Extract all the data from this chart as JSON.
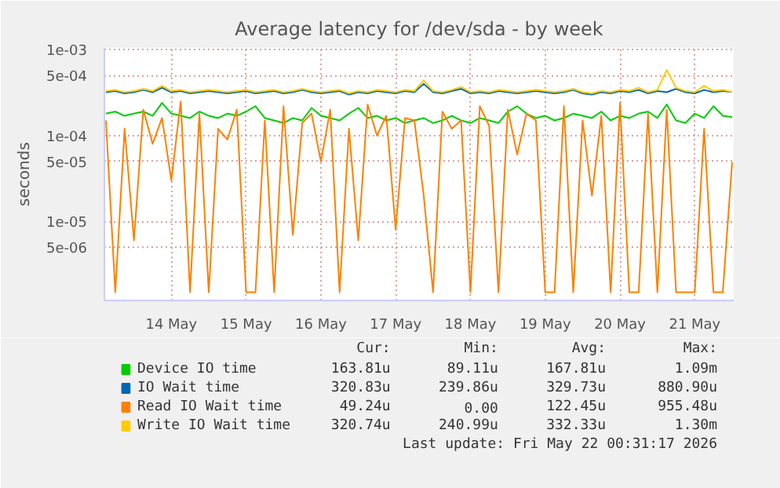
{
  "chart_data": {
    "type": "line",
    "title": "Average latency for /dev/sda - by week",
    "ylabel": "seconds",
    "x": [
      "2026-05-13T15:00",
      "2026-05-13T18:00",
      "2026-05-13T21:00",
      "2026-05-14T00:00",
      "2026-05-14T03:00",
      "2026-05-14T06:00",
      "2026-05-14T09:00",
      "2026-05-14T12:00",
      "2026-05-14T15:00",
      "2026-05-14T18:00",
      "2026-05-14T21:00",
      "2026-05-15T00:00",
      "2026-05-15T03:00",
      "2026-05-15T06:00",
      "2026-05-15T09:00",
      "2026-05-15T12:00",
      "2026-05-15T15:00",
      "2026-05-15T18:00",
      "2026-05-15T21:00",
      "2026-05-16T00:00",
      "2026-05-16T03:00",
      "2026-05-16T06:00",
      "2026-05-16T09:00",
      "2026-05-16T12:00",
      "2026-05-16T15:00",
      "2026-05-16T18:00",
      "2026-05-16T21:00",
      "2026-05-17T00:00",
      "2026-05-17T03:00",
      "2026-05-17T06:00",
      "2026-05-17T09:00",
      "2026-05-17T12:00",
      "2026-05-17T15:00",
      "2026-05-17T18:00",
      "2026-05-17T21:00",
      "2026-05-18T00:00",
      "2026-05-18T03:00",
      "2026-05-18T06:00",
      "2026-05-18T09:00",
      "2026-05-18T12:00",
      "2026-05-18T15:00",
      "2026-05-18T18:00",
      "2026-05-18T21:00",
      "2026-05-19T00:00",
      "2026-05-19T03:00",
      "2026-05-19T06:00",
      "2026-05-19T09:00",
      "2026-05-19T12:00",
      "2026-05-19T15:00",
      "2026-05-19T18:00",
      "2026-05-19T21:00",
      "2026-05-20T00:00",
      "2026-05-20T03:00",
      "2026-05-20T06:00",
      "2026-05-20T09:00",
      "2026-05-20T12:00",
      "2026-05-20T15:00",
      "2026-05-20T18:00",
      "2026-05-20T21:00",
      "2026-05-21T00:00",
      "2026-05-21T03:00",
      "2026-05-21T06:00",
      "2026-05-21T09:00",
      "2026-05-21T12:00",
      "2026-05-21T15:00",
      "2026-05-21T18:00",
      "2026-05-21T21:00",
      "2026-05-22T00:00"
    ],
    "xlim": [
      "2026-05-13T14:30",
      "2026-05-22T00:30"
    ],
    "xticks": [
      {
        "value": "2026-05-14T12:00",
        "label": "14 May"
      },
      {
        "value": "2026-05-15T12:00",
        "label": "15 May"
      },
      {
        "value": "2026-05-16T12:00",
        "label": "16 May"
      },
      {
        "value": "2026-05-17T12:00",
        "label": "17 May"
      },
      {
        "value": "2026-05-18T12:00",
        "label": "18 May"
      },
      {
        "value": "2026-05-19T12:00",
        "label": "19 May"
      },
      {
        "value": "2026-05-20T12:00",
        "label": "20 May"
      },
      {
        "value": "2026-05-21T12:00",
        "label": "21 May"
      }
    ],
    "ylim": [
      1.2e-06,
      0.00105
    ],
    "yticks": [
      {
        "value": 0.001,
        "label": "1e-03"
      },
      {
        "value": 0.0005,
        "label": "5e-04"
      },
      {
        "value": 0.0001,
        "label": "1e-04"
      },
      {
        "value": 5e-05,
        "label": "5e-05"
      },
      {
        "value": 1e-05,
        "label": "1e-05"
      },
      {
        "value": 5e-06,
        "label": "5e-06"
      }
    ],
    "log": true,
    "grid": true,
    "legend": "bottom",
    "marker": "none",
    "line_style": "solid",
    "series": [
      {
        "name": "Device IO time",
        "color": "#00cc00",
        "values": [
          0.00018,
          0.00019,
          0.00017,
          0.00018,
          0.00019,
          0.00017,
          0.00024,
          0.00018,
          0.00017,
          0.00016,
          0.00019,
          0.00017,
          0.00016,
          0.00018,
          0.00017,
          0.00019,
          0.00022,
          0.00016,
          0.00015,
          0.00014,
          0.00016,
          0.00015,
          0.00021,
          0.00017,
          0.00016,
          0.00015,
          0.00018,
          0.00021,
          0.00016,
          0.00017,
          0.00015,
          0.00016,
          0.00014,
          0.00015,
          0.00016,
          0.00014,
          0.00015,
          0.00017,
          0.00015,
          0.00014,
          0.00016,
          0.00015,
          0.00014,
          0.00019,
          0.00022,
          0.00018,
          0.00016,
          0.00017,
          0.00015,
          0.00016,
          0.00018,
          0.00017,
          0.00016,
          0.00019,
          0.00015,
          0.00017,
          0.00016,
          0.00018,
          0.00019,
          0.00016,
          0.00023,
          0.00015,
          0.00014,
          0.00018,
          0.00016,
          0.00022,
          0.00017,
          0.000164
        ]
      },
      {
        "name": "IO Wait time",
        "color": "#0066b3",
        "values": [
          0.00032,
          0.00033,
          0.00031,
          0.00032,
          0.00034,
          0.00032,
          0.00036,
          0.00032,
          0.00033,
          0.00031,
          0.00032,
          0.00033,
          0.00032,
          0.00031,
          0.00032,
          0.00033,
          0.00031,
          0.00032,
          0.00033,
          0.00031,
          0.00032,
          0.00034,
          0.00032,
          0.00031,
          0.00032,
          0.00033,
          0.0003,
          0.00032,
          0.00031,
          0.00033,
          0.00032,
          0.00031,
          0.00033,
          0.00032,
          0.0004,
          0.00032,
          0.00031,
          0.00033,
          0.00035,
          0.00031,
          0.00032,
          0.00031,
          0.00033,
          0.00032,
          0.00031,
          0.00032,
          0.00033,
          0.00032,
          0.00031,
          0.00032,
          0.00034,
          0.00031,
          0.0003,
          0.00032,
          0.00031,
          0.00033,
          0.00032,
          0.00034,
          0.00031,
          0.00033,
          0.00032,
          0.00035,
          0.00032,
          0.00031,
          0.00034,
          0.00032,
          0.00033,
          0.000321
        ]
      },
      {
        "name": "Read IO Wait time",
        "color": "#ff8000",
        "values": [
          0.00015,
          1.5e-06,
          0.00012,
          6e-06,
          0.0002,
          8e-05,
          0.00016,
          3e-05,
          0.00025,
          1.5e-06,
          0.00018,
          1.5e-06,
          0.00012,
          9e-05,
          0.0002,
          1.5e-06,
          1.5e-06,
          0.00015,
          1.5e-06,
          0.00022,
          7e-06,
          0.00014,
          0.00018,
          5e-05,
          0.0002,
          1.5e-06,
          0.00012,
          6e-06,
          0.00023,
          0.0001,
          0.00017,
          8e-06,
          0.00016,
          0.00015,
          2e-05,
          1.5e-06,
          0.00019,
          0.00012,
          0.00015,
          1.5e-06,
          0.00022,
          0.00013,
          1.5e-06,
          0.0002,
          6e-05,
          0.00018,
          0.00015,
          1.5e-06,
          1.5e-06,
          0.00022,
          1.5e-06,
          0.00015,
          2e-05,
          0.00017,
          1.5e-06,
          0.00024,
          1.5e-06,
          1.5e-06,
          0.00018,
          1.5e-06,
          0.0002,
          1.5e-06,
          1.5e-06,
          1.5e-06,
          0.00012,
          1.5e-06,
          1.5e-06,
          4.9e-05
        ]
      },
      {
        "name": "Write IO Wait time",
        "color": "#ffcc00",
        "values": [
          0.00033,
          0.00034,
          0.00032,
          0.00033,
          0.00035,
          0.00033,
          0.00038,
          0.00033,
          0.00034,
          0.00032,
          0.00033,
          0.00034,
          0.00033,
          0.00032,
          0.00033,
          0.00034,
          0.00032,
          0.00033,
          0.00034,
          0.00032,
          0.00033,
          0.00035,
          0.00033,
          0.00032,
          0.00033,
          0.00034,
          0.00031,
          0.00033,
          0.00032,
          0.00034,
          0.00033,
          0.00032,
          0.00034,
          0.00033,
          0.00044,
          0.00033,
          0.00032,
          0.00034,
          0.00037,
          0.00032,
          0.00033,
          0.00032,
          0.00034,
          0.00033,
          0.00032,
          0.00033,
          0.00034,
          0.00033,
          0.00032,
          0.00033,
          0.00035,
          0.00032,
          0.00031,
          0.00033,
          0.00032,
          0.00034,
          0.00033,
          0.00036,
          0.00032,
          0.00034,
          0.00058,
          0.00036,
          0.00033,
          0.00032,
          0.00038,
          0.00033,
          0.00034,
          0.000321
        ]
      }
    ],
    "annotations": [
      "Cur:",
      "Min:",
      "Avg:",
      "Max:",
      "163.81u",
      "89.11u",
      "167.81u",
      "1.09m",
      "320.83u",
      "239.86u",
      "329.73u",
      "880.90u",
      "49.24u",
      "0.00",
      "122.45u",
      "955.48u",
      "320.74u",
      "240.99u",
      "332.33u",
      "1.30m",
      "Last update: Fri May 22 00:31:17 2026"
    ]
  }
}
